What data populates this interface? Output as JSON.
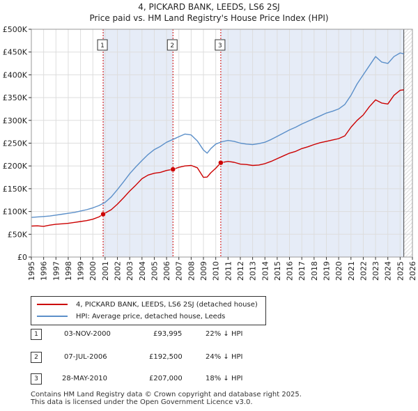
{
  "header": {
    "title": "4, PICKARD BANK, LEEDS, LS6 2SJ",
    "subtitle": "Price paid vs. HM Land Registry's House Price Index (HPI)"
  },
  "legend": {
    "property_label": "4, PICKARD BANK, LEEDS, LS6 2SJ (detached house)",
    "hpi_label": "HPI: Average price, detached house, Leeds"
  },
  "colors": {
    "property": "#cc0000",
    "hpi": "#5b8fc9",
    "shade": "#e6ecf7",
    "marker_line": "#cc0000"
  },
  "transactions": [
    {
      "num": "1",
      "date": "03-NOV-2000",
      "price": "£93,995",
      "delta": "22% ↓ HPI"
    },
    {
      "num": "2",
      "date": "07-JUL-2006",
      "price": "£192,500",
      "delta": "24% ↓ HPI"
    },
    {
      "num": "3",
      "date": "28-MAY-2010",
      "price": "£207,000",
      "delta": "18% ↓ HPI"
    }
  ],
  "footer": {
    "line1": "Contains HM Land Registry data © Crown copyright and database right 2025.",
    "line2": "This data is licensed under the Open Government Licence v3.0."
  },
  "chart_data": {
    "type": "line",
    "title": "4, PICKARD BANK, LEEDS, LS6 2SJ",
    "subtitle": "Price paid vs. HM Land Registry's House Price Index (HPI)",
    "xlabel": "",
    "ylabel": "",
    "xlim": [
      1995,
      2026
    ],
    "ylim": [
      0,
      500000
    ],
    "x_ticks": [
      "1995",
      "1996",
      "1997",
      "1998",
      "1999",
      "2000",
      "2001",
      "2002",
      "2003",
      "2004",
      "2005",
      "2006",
      "2007",
      "2008",
      "2009",
      "2010",
      "2011",
      "2012",
      "2013",
      "2014",
      "2015",
      "2016",
      "2017",
      "2018",
      "2019",
      "2020",
      "2021",
      "2022",
      "2023",
      "2024",
      "2025",
      "2026"
    ],
    "y_ticks": [
      {
        "value": 0,
        "label": "£0"
      },
      {
        "value": 50000,
        "label": "£50K"
      },
      {
        "value": 100000,
        "label": "£100K"
      },
      {
        "value": 150000,
        "label": "£150K"
      },
      {
        "value": 200000,
        "label": "£200K"
      },
      {
        "value": 250000,
        "label": "£250K"
      },
      {
        "value": 300000,
        "label": "£300K"
      },
      {
        "value": 350000,
        "label": "£350K"
      },
      {
        "value": 400000,
        "label": "£400K"
      },
      {
        "value": 450000,
        "label": "£450K"
      },
      {
        "value": 500000,
        "label": "£500K"
      }
    ],
    "shaded_ranges": [
      [
        2000.84,
        2006.52
      ],
      [
        2010.41,
        2025.3
      ]
    ],
    "future_hatch_start": 2025.3,
    "sales": [
      {
        "label": "1",
        "x": 2000.84,
        "y": 93995
      },
      {
        "label": "2",
        "x": 2006.52,
        "y": 192500
      },
      {
        "label": "3",
        "x": 2010.41,
        "y": 207000
      }
    ],
    "series": [
      {
        "name": "4, PICKARD BANK, LEEDS, LS6 2SJ (detached house)",
        "x": [
          1995.0,
          1995.5,
          1996.0,
          1996.5,
          1997.0,
          1997.5,
          1998.0,
          1998.5,
          1999.0,
          1999.5,
          2000.0,
          2000.5,
          2000.84,
          2001.5,
          2002.0,
          2002.5,
          2003.0,
          2003.5,
          2004.0,
          2004.5,
          2005.0,
          2005.5,
          2006.0,
          2006.52,
          2007.0,
          2007.5,
          2008.0,
          2008.5,
          2009.0,
          2009.3,
          2009.6,
          2010.0,
          2010.41,
          2011.0,
          2011.5,
          2012.0,
          2012.5,
          2013.0,
          2013.5,
          2014.0,
          2014.5,
          2015.0,
          2015.5,
          2016.0,
          2016.5,
          2017.0,
          2017.5,
          2018.0,
          2018.5,
          2019.0,
          2019.5,
          2020.0,
          2020.5,
          2021.0,
          2021.5,
          2022.0,
          2022.5,
          2023.0,
          2023.5,
          2024.0,
          2024.5,
          2025.0,
          2025.3
        ],
        "y": [
          68000,
          68500,
          67500,
          70000,
          72000,
          73000,
          74000,
          76000,
          78000,
          80000,
          83000,
          88000,
          93995,
          104000,
          116000,
          130000,
          145000,
          158000,
          172000,
          180000,
          184000,
          186000,
          190000,
          192500,
          197000,
          200000,
          201000,
          196000,
          175000,
          175500,
          185000,
          195000,
          207000,
          210000,
          208000,
          204000,
          203000,
          201000,
          202000,
          205000,
          210000,
          216000,
          222000,
          228000,
          232000,
          238000,
          242000,
          247000,
          251000,
          254000,
          257000,
          260000,
          266000,
          285000,
          300000,
          312000,
          330000,
          345000,
          338000,
          336000,
          355000,
          366000,
          367000
        ]
      },
      {
        "name": "HPI: Average price, detached house, Leeds",
        "x": [
          1995.0,
          1995.5,
          1996.0,
          1996.5,
          1997.0,
          1997.5,
          1998.0,
          1998.5,
          1999.0,
          1999.5,
          2000.0,
          2000.5,
          2001.0,
          2001.5,
          2002.0,
          2002.5,
          2003.0,
          2003.5,
          2004.0,
          2004.5,
          2005.0,
          2005.5,
          2006.0,
          2006.5,
          2007.0,
          2007.5,
          2008.0,
          2008.5,
          2009.0,
          2009.3,
          2009.6,
          2010.0,
          2010.5,
          2011.0,
          2011.5,
          2012.0,
          2012.5,
          2013.0,
          2013.5,
          2014.0,
          2014.5,
          2015.0,
          2015.5,
          2016.0,
          2016.5,
          2017.0,
          2017.5,
          2018.0,
          2018.5,
          2019.0,
          2019.5,
          2020.0,
          2020.5,
          2021.0,
          2021.5,
          2022.0,
          2022.5,
          2023.0,
          2023.5,
          2024.0,
          2024.5,
          2025.0,
          2025.3
        ],
        "y": [
          87000,
          88000,
          89000,
          90000,
          92000,
          94000,
          96000,
          98000,
          101000,
          104000,
          108000,
          113000,
          120000,
          132000,
          148000,
          165000,
          183000,
          198000,
          212000,
          225000,
          236000,
          243000,
          252000,
          258000,
          264000,
          270000,
          268000,
          255000,
          235000,
          228000,
          238000,
          248000,
          253000,
          256000,
          254000,
          250000,
          248000,
          247000,
          249000,
          252000,
          258000,
          265000,
          272000,
          279000,
          285000,
          292000,
          298000,
          304000,
          310000,
          316000,
          320000,
          325000,
          335000,
          355000,
          380000,
          400000,
          420000,
          440000,
          428000,
          425000,
          440000,
          448000,
          446000
        ]
      }
    ]
  }
}
